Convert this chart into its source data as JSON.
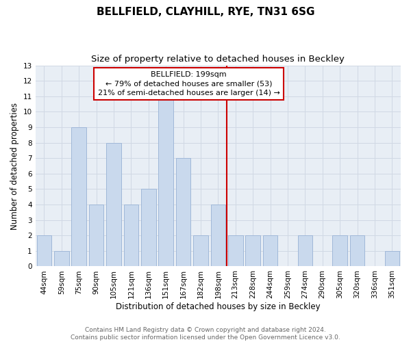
{
  "title": "BELLFIELD, CLAYHILL, RYE, TN31 6SG",
  "subtitle": "Size of property relative to detached houses in Beckley",
  "xlabel": "Distribution of detached houses by size in Beckley",
  "ylabel": "Number of detached properties",
  "categories": [
    "44sqm",
    "59sqm",
    "75sqm",
    "90sqm",
    "105sqm",
    "121sqm",
    "136sqm",
    "151sqm",
    "167sqm",
    "182sqm",
    "198sqm",
    "213sqm",
    "228sqm",
    "244sqm",
    "259sqm",
    "274sqm",
    "290sqm",
    "305sqm",
    "320sqm",
    "336sqm",
    "351sqm"
  ],
  "values": [
    2,
    1,
    9,
    4,
    8,
    4,
    5,
    11,
    7,
    2,
    4,
    2,
    2,
    2,
    0,
    2,
    0,
    2,
    2,
    0,
    1
  ],
  "bar_color": "#c9d9ed",
  "bar_edge_color": "#a0b8d8",
  "vline_index": 10.5,
  "vline_color": "#cc0000",
  "annotation_line1": "BELLFIELD: 199sqm",
  "annotation_line2": "← 79% of detached houses are smaller (53)",
  "annotation_line3": "21% of semi-detached houses are larger (14) →",
  "annotation_box_color": "#cc0000",
  "annotation_box_bg": "#ffffff",
  "ylim": [
    0,
    13
  ],
  "yticks": [
    0,
    1,
    2,
    3,
    4,
    5,
    6,
    7,
    8,
    9,
    10,
    11,
    12,
    13
  ],
  "grid_color": "#d0d8e4",
  "background_color": "#e8eef5",
  "footer_text": "Contains HM Land Registry data © Crown copyright and database right 2024.\nContains public sector information licensed under the Open Government Licence v3.0.",
  "title_fontsize": 11,
  "subtitle_fontsize": 9.5,
  "label_fontsize": 8.5,
  "tick_fontsize": 7.5,
  "annotation_fontsize": 8,
  "footer_fontsize": 6.5
}
